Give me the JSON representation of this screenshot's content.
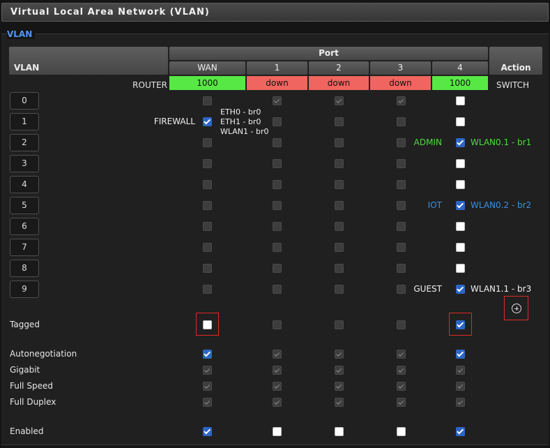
{
  "page_title": "Virtual Local Area Network (VLAN)",
  "section_legend": "VLAN",
  "headers": {
    "vlan": "VLAN",
    "port": "Port",
    "action": "Action",
    "ports": [
      "WAN",
      "1",
      "2",
      "3",
      "4"
    ]
  },
  "router_label": "ROUTER",
  "switch_label": "SWITCH",
  "port_status": [
    "1000",
    "down",
    "down",
    "down",
    "1000"
  ],
  "colors": {
    "link_up": "#58e845",
    "link_down": "#f0655f",
    "accent": "#4e9bf0",
    "checked": "#2d66c5",
    "highlight": "#e02828"
  },
  "vlans": [
    {
      "id": "0",
      "cells": [
        "off",
        "ron",
        "ron",
        "ron",
        "white"
      ],
      "left_label": "",
      "bridges": [],
      "mid_label": "",
      "right_label": ""
    },
    {
      "id": "1",
      "cells": [
        "blue",
        "off",
        "off",
        "off",
        "white"
      ],
      "left_label": "FIREWALL",
      "bridges": [
        "ETH0 - br0",
        "ETH1 - br0",
        "WLAN1 - br0"
      ],
      "mid_label": "",
      "right_label": ""
    },
    {
      "id": "2",
      "cells": [
        "off",
        "off",
        "off",
        "off",
        "blue"
      ],
      "left_label": "",
      "bridges": [],
      "mid_label": "ADMIN",
      "right_label": "WLAN0.1 - br1",
      "label_color": "green"
    },
    {
      "id": "3",
      "cells": [
        "off",
        "off",
        "off",
        "off",
        "white"
      ],
      "left_label": "",
      "bridges": [],
      "mid_label": "",
      "right_label": ""
    },
    {
      "id": "4",
      "cells": [
        "off",
        "off",
        "off",
        "off",
        "white"
      ],
      "left_label": "",
      "bridges": [],
      "mid_label": "",
      "right_label": ""
    },
    {
      "id": "5",
      "cells": [
        "off",
        "off",
        "off",
        "off",
        "blue"
      ],
      "left_label": "",
      "bridges": [],
      "mid_label": "IOT",
      "right_label": "WLAN0.2 - br2",
      "label_color": "blue"
    },
    {
      "id": "6",
      "cells": [
        "off",
        "off",
        "off",
        "off",
        "white"
      ],
      "left_label": "",
      "bridges": [],
      "mid_label": "",
      "right_label": ""
    },
    {
      "id": "7",
      "cells": [
        "off",
        "off",
        "off",
        "off",
        "white"
      ],
      "left_label": "",
      "bridges": [],
      "mid_label": "",
      "right_label": ""
    },
    {
      "id": "8",
      "cells": [
        "off",
        "off",
        "off",
        "off",
        "white"
      ],
      "left_label": "",
      "bridges": [],
      "mid_label": "",
      "right_label": ""
    },
    {
      "id": "9",
      "cells": [
        "off",
        "off",
        "off",
        "off",
        "blue"
      ],
      "left_label": "",
      "bridges": [],
      "mid_label": "GUEST",
      "right_label": "WLAN1.1 - br3",
      "label_color": "white"
    }
  ],
  "tagged": {
    "label": "Tagged",
    "cells": [
      "white",
      "off",
      "off",
      "off",
      "blue"
    ]
  },
  "port_settings": [
    {
      "label": "Autonegotiation",
      "cells": [
        "blue",
        "ron",
        "ron",
        "ron",
        "blue"
      ]
    },
    {
      "label": "Gigabit",
      "cells": [
        "ron",
        "ron",
        "ron",
        "ron",
        "ron"
      ]
    },
    {
      "label": "Full Speed",
      "cells": [
        "ron",
        "ron",
        "ron",
        "ron",
        "ron"
      ]
    },
    {
      "label": "Full Duplex",
      "cells": [
        "ron",
        "ron",
        "ron",
        "ron",
        "ron"
      ]
    }
  ],
  "enabled": {
    "label": "Enabled",
    "cells": [
      "blue",
      "white",
      "white",
      "white",
      "blue"
    ]
  },
  "add_button_icon": "plus-circle-icon"
}
